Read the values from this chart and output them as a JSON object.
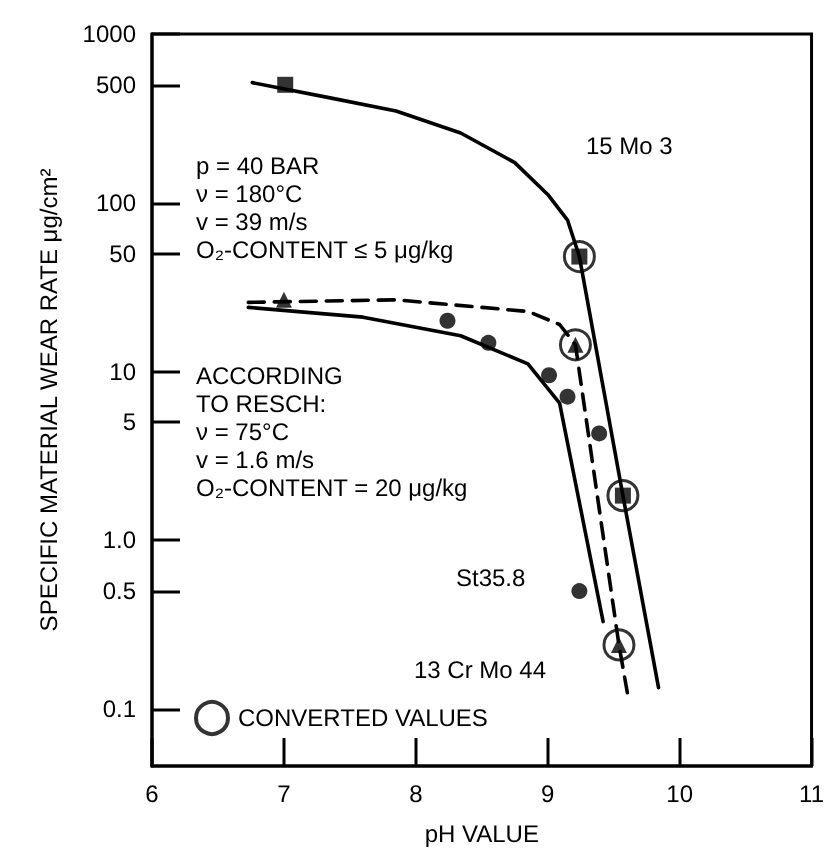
{
  "chart_data": {
    "type": "line",
    "xlabel": "pH VALUE",
    "ylabel": "SPECIFIC MATERIAL WEAR RATE μg/cm²",
    "log": "y",
    "grid": false,
    "legend": "bottom left",
    "xlim": [
      6,
      11
    ],
    "xticks": [
      6,
      7,
      8,
      9,
      10,
      11
    ],
    "ylim": [
      0.046,
      1000
    ],
    "yticks": [
      0.1,
      0.5,
      {
        "value": 1,
        "label": "1.0"
      },
      5,
      10,
      50,
      100,
      500,
      1000
    ],
    "series": [
      {
        "color": "#000000",
        "line_style": "solid",
        "marker": "none",
        "x": [
          6.76,
          7.36,
          7.85,
          8.34,
          8.75,
          9.0,
          9.15,
          9.24,
          9.57,
          9.84
        ],
        "values": [
          515,
          417,
          350,
          259,
          173,
          112,
          79,
          48,
          1.84,
          0.134
        ]
      },
      {
        "color": "#000000",
        "line_style": "dashed",
        "marker": "none",
        "x": [
          6.73,
          7.85,
          8.85,
          9.09,
          9.21,
          9.54,
          9.61
        ],
        "values": [
          25.7,
          26.6,
          22.7,
          19,
          14.4,
          0.24,
          0.117
        ]
      },
      {
        "color": "#000000",
        "line_style": "solid",
        "marker": "none",
        "x": [
          6.73,
          7.6,
          8.34,
          8.85,
          9.09,
          9.42
        ],
        "values": [
          24,
          21,
          16.3,
          11.1,
          6.5,
          0.33
        ]
      },
      {
        "type": "scatter",
        "color": "#000000",
        "marker": "square",
        "x": [
          7.01,
          9.24,
          9.57
        ],
        "values": [
          500,
          48,
          1.84
        ]
      },
      {
        "type": "scatter",
        "color": "#000000",
        "marker": "triangle",
        "x": [
          7.0,
          9.21,
          9.54
        ],
        "values": [
          26.6,
          14.4,
          0.24
        ]
      },
      {
        "type": "scatter",
        "color": "#000000",
        "marker": "circle",
        "x": [
          8.24,
          8.55,
          9.01,
          9.15,
          9.39,
          9.24
        ],
        "values": [
          20,
          14.8,
          9.5,
          7.1,
          4.3,
          0.5
        ]
      },
      {
        "type": "scatter",
        "name": "CONVERTED VALUES",
        "color": "#000000",
        "x": [
          9.24,
          9.21,
          9.57,
          9.54
        ],
        "values": [
          48,
          14.4,
          1.84,
          0.24
        ]
      }
    ],
    "annotations": [
      "p = 40 BAR\nν = 180°C\nv = 39 m/s\nO₂-CONTENT ≤ 5 μg/kg",
      "ACCORDING\nTO RESCH:\nν = 75°C\nv = 1.6 m/s\nO₂-CONTENT = 20 μg/kg",
      "15 Mo 3",
      "St35.8",
      "13 Cr Mo 44"
    ]
  }
}
